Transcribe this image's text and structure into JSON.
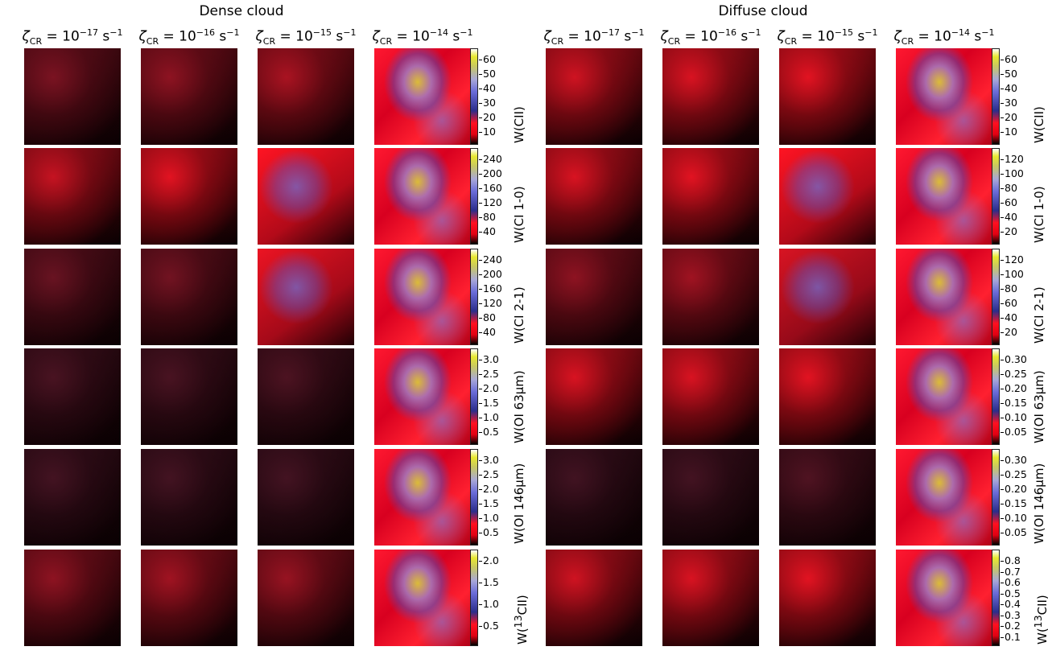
{
  "figure": {
    "groups": [
      {
        "title": "Dense cloud",
        "columns": [
          "10^{-17}",
          "10^{-16}",
          "10^{-15}",
          "10^{-14}"
        ],
        "colorbars": [
          {
            "label": "W(CII)",
            "ticks": [
              "60",
              "50",
              "40",
              "30",
              "20",
              "10"
            ]
          },
          {
            "label": "W(CI 1-0)",
            "ticks": [
              "240",
              "200",
              "160",
              "120",
              "80",
              "40"
            ]
          },
          {
            "label": "W(CI 2-1)",
            "ticks": [
              "240",
              "200",
              "160",
              "120",
              "80",
              "40"
            ]
          },
          {
            "label": "W(OI 63μm)",
            "ticks": [
              "3.0",
              "2.5",
              "2.0",
              "1.5",
              "1.0",
              "0.5"
            ]
          },
          {
            "label": "W(OI 146μm)",
            "ticks": [
              "3.0",
              "2.5",
              "2.0",
              "1.5",
              "1.0",
              "0.5"
            ]
          },
          {
            "label": "W(13CII)",
            "ticks": [
              "2.0",
              "1.5",
              "1.0",
              "0.5"
            ]
          }
        ]
      },
      {
        "title": "Diffuse cloud",
        "columns": [
          "10^{-17}",
          "10^{-16}",
          "10^{-15}",
          "10^{-14}"
        ],
        "colorbars": [
          {
            "label": "W(CII)",
            "ticks": [
              "60",
              "50",
              "40",
              "30",
              "20",
              "10"
            ]
          },
          {
            "label": "W(CI 1-0)",
            "ticks": [
              "120",
              "100",
              "80",
              "60",
              "40",
              "20"
            ]
          },
          {
            "label": "W(CI 2-1)",
            "ticks": [
              "120",
              "100",
              "80",
              "60",
              "40",
              "20"
            ]
          },
          {
            "label": "W(OI 63μm)",
            "ticks": [
              "0.30",
              "0.25",
              "0.20",
              "0.15",
              "0.10",
              "0.05"
            ]
          },
          {
            "label": "W(OI 146μm)",
            "ticks": [
              "0.30",
              "0.25",
              "0.20",
              "0.15",
              "0.10",
              "0.05"
            ]
          },
          {
            "label": "W(13CII)",
            "ticks": [
              "0.8",
              "0.7",
              "0.6",
              "0.5",
              "0.4",
              "0.3",
              "0.2",
              "0.1"
            ]
          }
        ]
      }
    ],
    "header_prefix": "ζ",
    "header_sub": "CR",
    "header_unit": "s",
    "header_unit_exp": "−1"
  }
}
